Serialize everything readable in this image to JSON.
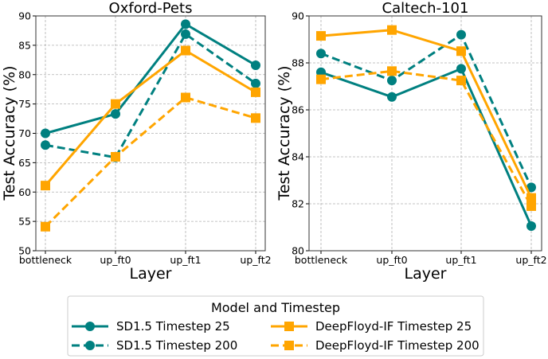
{
  "chart_data": [
    {
      "type": "line",
      "title": "Oxford-Pets",
      "xlabel": "Layer",
      "ylabel": "Test Accuracy (%)",
      "categories": [
        "bottleneck",
        "up_ft0",
        "up_ft1",
        "up_ft2"
      ],
      "ylim": [
        50,
        90
      ],
      "yticks": [
        50,
        55,
        60,
        65,
        70,
        75,
        80,
        85,
        90
      ],
      "grid": true,
      "series": [
        {
          "name": "SD1.5 Timestep 25",
          "values": [
            70.0,
            73.3,
            88.6,
            81.6
          ]
        },
        {
          "name": "SD1.5 Timestep 200",
          "values": [
            68.0,
            65.9,
            86.9,
            78.5
          ]
        },
        {
          "name": "DeepFloyd-IF Timestep 25",
          "values": [
            61.1,
            75.0,
            84.1,
            77.0
          ]
        },
        {
          "name": "DeepFloyd-IF Timestep 200",
          "values": [
            54.1,
            66.0,
            76.1,
            72.6
          ]
        }
      ]
    },
    {
      "type": "line",
      "title": "Caltech-101",
      "xlabel": "Layer",
      "ylabel": "Test Accuracy (%)",
      "categories": [
        "bottleneck",
        "up_ft0",
        "up_ft1",
        "up_ft2"
      ],
      "ylim": [
        80,
        90
      ],
      "yticks": [
        80,
        82,
        84,
        86,
        88,
        90
      ],
      "grid": true,
      "series": [
        {
          "name": "SD1.5 Timestep 25",
          "values": [
            87.6,
            86.55,
            87.75,
            81.05
          ]
        },
        {
          "name": "SD1.5 Timestep 200",
          "values": [
            88.4,
            87.25,
            89.2,
            82.7
          ]
        },
        {
          "name": "DeepFloyd-IF Timestep 25",
          "values": [
            89.15,
            89.4,
            88.5,
            82.25
          ]
        },
        {
          "name": "DeepFloyd-IF Timestep 200",
          "values": [
            87.3,
            87.65,
            87.25,
            81.9
          ]
        }
      ]
    }
  ],
  "legend": {
    "title": "Model and Timestep",
    "placement": "bottom-center",
    "entries": [
      {
        "label": "SD1.5 Timestep 25",
        "color": "#008080",
        "marker": "circle",
        "dash": "solid"
      },
      {
        "label": "SD1.5 Timestep 200",
        "color": "#008080",
        "marker": "circle",
        "dash": "dashed"
      },
      {
        "label": "DeepFloyd-IF Timestep 25",
        "color": "#FFA500",
        "marker": "square",
        "dash": "solid"
      },
      {
        "label": "DeepFloyd-IF Timestep 200",
        "color": "#FFA500",
        "marker": "square",
        "dash": "dashed"
      }
    ]
  }
}
